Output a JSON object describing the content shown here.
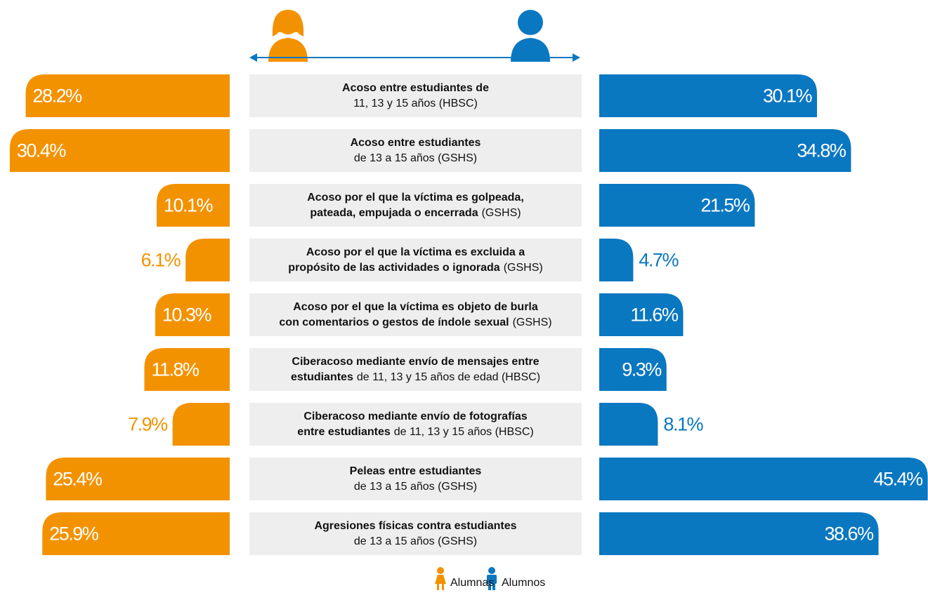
{
  "chart_data": {
    "type": "butterfly",
    "categories": [
      [
        {
          "b": "Acoso entre estudiantes de"
        },
        {
          "n": "11, 13 y 15 años (HBSC)"
        }
      ],
      [
        {
          "b": "Acoso entre estudiantes"
        },
        {
          "n": "de 13 a 15 años (GSHS)"
        }
      ],
      [
        {
          "b": "Acoso por el que la víctima es golpeada,"
        },
        {
          "b": "pateada, empujada o encerrada",
          "n": "(GSHS)"
        }
      ],
      [
        {
          "b": "Acoso por el que la víctima es excluida a"
        },
        {
          "b": "propósito de las actividades o ignorada",
          "n": "(GSHS)"
        }
      ],
      [
        {
          "b": "Acoso por el que la víctima es objeto de burla"
        },
        {
          "b": "con comentarios o gestos de índole sexual",
          "n": "(GSHS)"
        }
      ],
      [
        {
          "b": "Ciberacoso mediante envío de mensajes entre"
        },
        {
          "b": "estudiantes",
          "n": "de 11, 13 y 15 años de edad (HBSC)"
        }
      ],
      [
        {
          "b": "Ciberacoso mediante envío de fotografías"
        },
        {
          "b": "entre estudiantes",
          "n": "de 11, 13 y 15 años (HBSC)"
        }
      ],
      [
        {
          "b": "Peleas entre estudiantes"
        },
        {
          "n": "de 13 a 15 años (GSHS)"
        }
      ],
      [
        {
          "b": "Agresiones físicas contra estudiantes"
        },
        {
          "n": "de 13 a 15 años (GSHS)"
        }
      ]
    ],
    "series": [
      {
        "name": "Alumnas",
        "color": "#f39200",
        "values": [
          28.2,
          30.4,
          10.1,
          6.1,
          10.3,
          11.8,
          7.9,
          25.4,
          25.9
        ],
        "value_labels": [
          "28.2%",
          "30.4%",
          "10.1%",
          "6.1%",
          "10.3%",
          "11.8%",
          "7.9%",
          "25.4%",
          "25.9%"
        ]
      },
      {
        "name": "Alumnos",
        "color": "#0a77c1",
        "values": [
          30.1,
          34.8,
          21.5,
          4.7,
          11.6,
          9.3,
          8.1,
          45.4,
          38.6
        ],
        "value_labels": [
          "30.1%",
          "34.8%",
          "21.5%",
          "4.7%",
          "11.6%",
          "9.3%",
          "8.1%",
          "45.4%",
          "38.6%"
        ]
      }
    ]
  }
}
